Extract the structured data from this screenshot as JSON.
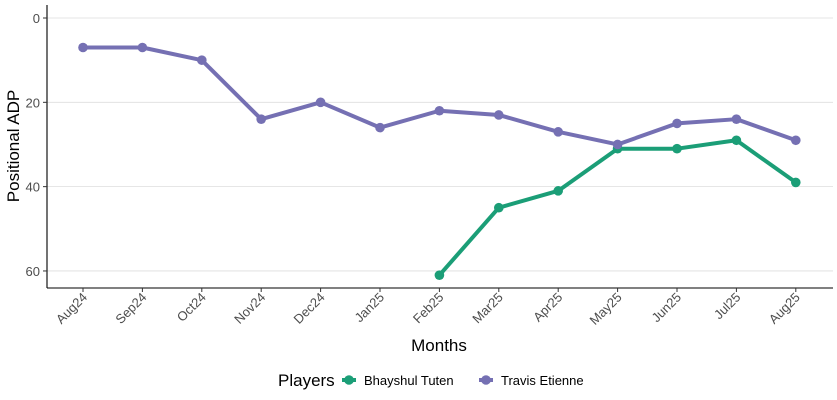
{
  "chart_data": {
    "type": "line",
    "xlabel": "Months",
    "ylabel": "Positional ADP",
    "categories": [
      "Aug24",
      "Sep24",
      "Oct24",
      "Nov24",
      "Dec24",
      "Jan25",
      "Feb25",
      "Mar25",
      "Apr25",
      "May25",
      "Jun25",
      "Jul25",
      "Aug25"
    ],
    "ylim": [
      0,
      64
    ],
    "y_reversed": true,
    "yticks": [
      0,
      20,
      40,
      60
    ],
    "grid": "horizontal",
    "legend": {
      "title": "Players",
      "position": "bottom"
    },
    "series": [
      {
        "name": "Bhayshul Tuten",
        "color": "#1b9e77",
        "values": [
          null,
          null,
          null,
          null,
          null,
          null,
          61,
          45,
          41,
          31,
          31,
          29,
          39
        ]
      },
      {
        "name": "Travis Etienne",
        "color": "#7570b3",
        "values": [
          7,
          7,
          10,
          24,
          20,
          26,
          22,
          23,
          27,
          30,
          25,
          24,
          29
        ]
      }
    ]
  }
}
